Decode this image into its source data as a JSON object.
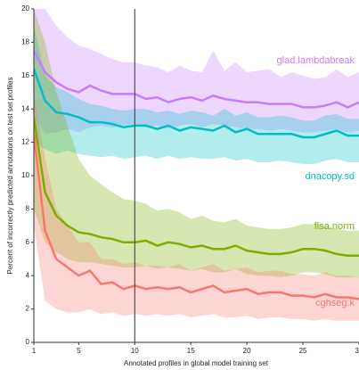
{
  "chart_data": {
    "type": "line",
    "x_label": "Annotated profiles in global model training set",
    "y_label": "Percent of incorrectly predicted annotations on test set profiles",
    "x": [
      1,
      2,
      3,
      4,
      5,
      6,
      7,
      8,
      9,
      10,
      11,
      12,
      13,
      14,
      15,
      16,
      17,
      18,
      19,
      20,
      21,
      22,
      23,
      24,
      25,
      26,
      27,
      28,
      29,
      30
    ],
    "xlim": [
      1,
      30
    ],
    "xticks": [
      1,
      5,
      10,
      15,
      20,
      25,
      30
    ],
    "ylim": [
      0,
      20
    ],
    "yticks": [
      0,
      2,
      4,
      6,
      8,
      10,
      12,
      14,
      16,
      18,
      20
    ],
    "vline": 10,
    "series": [
      {
        "name": "glad.lambdabreak",
        "color": "#c77cff",
        "values": [
          17.5,
          16.2,
          15.6,
          15.2,
          15.0,
          15.4,
          15.1,
          14.9,
          14.9,
          14.9,
          14.6,
          14.7,
          14.4,
          14.6,
          14.7,
          14.5,
          14.8,
          14.6,
          14.5,
          14.4,
          14.4,
          14.3,
          14.3,
          14.3,
          14.1,
          14.1,
          14.2,
          14.4,
          14.1,
          14.4
        ],
        "upper": [
          22,
          20,
          19,
          18.3,
          17.8,
          17.6,
          17.3,
          17,
          16.8,
          16.8,
          16.6,
          16.5,
          16.2,
          16.6,
          16.3,
          16.2,
          17.5,
          16.3,
          16.8,
          16.2,
          16.3,
          16.4,
          15.9,
          16.2,
          16,
          15.8,
          15.9,
          16.4,
          15.9,
          16.2
        ],
        "lower": [
          13.5,
          12.5,
          12.6,
          12.8,
          12.6,
          12.9,
          13,
          12.9,
          13,
          13.1,
          12.9,
          13,
          12.8,
          13,
          13.1,
          12.9,
          13.1,
          13,
          12.9,
          12.8,
          12.8,
          12.7,
          12.8,
          12.7,
          12.6,
          12.6,
          12.7,
          12.8,
          12.6,
          12.7
        ]
      },
      {
        "name": "dnacopy.sd",
        "color": "#00bfc4",
        "values": [
          16.4,
          14.5,
          13.8,
          13.7,
          13.5,
          13.2,
          13.2,
          13.1,
          12.9,
          13.0,
          13.0,
          12.8,
          13.0,
          12.7,
          12.9,
          12.8,
          12.7,
          13.0,
          12.6,
          12.8,
          12.5,
          12.5,
          12.5,
          12.5,
          12.3,
          12.3,
          12.5,
          12.7,
          12.4,
          12.4
        ],
        "upper": [
          19,
          16,
          15.3,
          15,
          14.6,
          14.3,
          14.2,
          14,
          13.9,
          14,
          14,
          13.8,
          13.9,
          13.7,
          13.9,
          13.8,
          13.6,
          14,
          13.6,
          13.8,
          13.5,
          13.5,
          13.6,
          13.5,
          13.3,
          13.3,
          13.6,
          13.7,
          13.4,
          13.4
        ],
        "lower": [
          12,
          11.6,
          11.3,
          11.5,
          11.3,
          11.2,
          11.1,
          11.2,
          11,
          11.1,
          11.2,
          11,
          11.2,
          11,
          11.1,
          11,
          11,
          11.1,
          10.9,
          11,
          10.8,
          10.8,
          10.9,
          10.8,
          10.7,
          10.7,
          10.9,
          11,
          10.8,
          10.8
        ]
      },
      {
        "name": "flsa.norm",
        "color": "#7cae00",
        "values": [
          13.5,
          9.0,
          7.6,
          7.0,
          6.6,
          6.5,
          6.3,
          6.2,
          6.0,
          6.0,
          6.1,
          5.8,
          6.0,
          5.9,
          5.7,
          5.8,
          5.6,
          5.6,
          5.8,
          5.5,
          5.4,
          5.3,
          5.3,
          5.4,
          5.6,
          5.6,
          5.5,
          5.3,
          5.2,
          5.2
        ],
        "upper": [
          20,
          18,
          15,
          13,
          11,
          10,
          9.5,
          9,
          8.6,
          8.5,
          8.3,
          7.9,
          8,
          7.8,
          7.4,
          7.6,
          7.3,
          7.2,
          7.4,
          7,
          6.9,
          6.8,
          6.8,
          6.9,
          7.1,
          7.1,
          7,
          6.8,
          6.7,
          6.7
        ],
        "lower": [
          8,
          6,
          5.4,
          5,
          4.8,
          4.8,
          4.7,
          4.6,
          4.5,
          4.5,
          4.6,
          4.4,
          4.5,
          4.4,
          4.3,
          4.4,
          4.2,
          4.2,
          4.4,
          4.1,
          4,
          4,
          3.9,
          4,
          4.2,
          4.2,
          4.1,
          3.9,
          3.9,
          3.9
        ]
      },
      {
        "name": "cghseg.k",
        "color": "#f8766d",
        "values": [
          12.5,
          6.7,
          5.0,
          4.5,
          4.0,
          4.3,
          3.5,
          3.6,
          3.2,
          3.4,
          3.2,
          3.3,
          3.2,
          3.3,
          3.0,
          3.2,
          3.4,
          3.0,
          3.1,
          3.2,
          2.9,
          3.0,
          3.0,
          2.8,
          2.8,
          2.7,
          2.9,
          2.7,
          2.7,
          2.6
        ],
        "upper": [
          15,
          11,
          8,
          7,
          6,
          6,
          5,
          5,
          4.7,
          4.8,
          4.6,
          4.6,
          4.5,
          4.7,
          4.3,
          4.5,
          4.7,
          4.3,
          4.4,
          4.5,
          4.2,
          4.3,
          4.3,
          4.1,
          4.1,
          4,
          4.2,
          4,
          4,
          3.9
        ],
        "lower": [
          7,
          2.5,
          2,
          1.8,
          1.8,
          2,
          1.7,
          1.8,
          1.6,
          1.7,
          1.6,
          1.7,
          1.6,
          1.7,
          1.5,
          1.6,
          1.7,
          1.5,
          1.5,
          1.6,
          1.4,
          1.5,
          1.5,
          1.4,
          1.4,
          1.3,
          1.4,
          1.3,
          1.3,
          1.3
        ]
      }
    ]
  }
}
